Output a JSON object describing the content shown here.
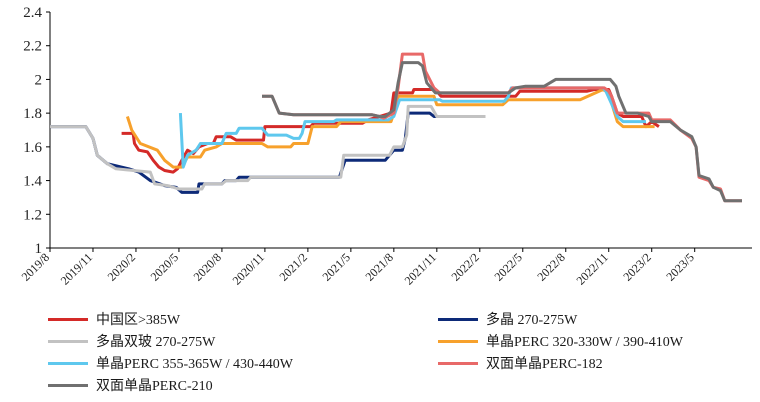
{
  "chart_data": {
    "type": "line",
    "title": "",
    "xlabel": "",
    "ylabel": "",
    "ylim": [
      1,
      2.4
    ],
    "y_ticks": [
      "1",
      "1.2",
      "1.4",
      "1.6",
      "1.8",
      "2",
      "2.2",
      "2.4"
    ],
    "x_range": [
      0,
      49
    ],
    "x_ticks": [
      {
        "label": "2019/8",
        "x": 0
      },
      {
        "label": "2019/11",
        "x": 3
      },
      {
        "label": "2020/2",
        "x": 6
      },
      {
        "label": "2020/5",
        "x": 9
      },
      {
        "label": "2020/8",
        "x": 12
      },
      {
        "label": "2020/11",
        "x": 15
      },
      {
        "label": "2021/2",
        "x": 18
      },
      {
        "label": "2021/5",
        "x": 21
      },
      {
        "label": "2021/8",
        "x": 24
      },
      {
        "label": "2021/11",
        "x": 27
      },
      {
        "label": "2022/2",
        "x": 30
      },
      {
        "label": "2022/5",
        "x": 33
      },
      {
        "label": "2022/8",
        "x": 36
      },
      {
        "label": "2022/11",
        "x": 39
      },
      {
        "label": "2023/2",
        "x": 42
      },
      {
        "label": "2023/5",
        "x": 45
      }
    ],
    "legend_position": "bottom",
    "series": [
      {
        "name": "中国区>385W",
        "color": "#d42a28",
        "points": [
          [
            5.0,
            1.68
          ],
          [
            5.8,
            1.68
          ],
          [
            5.9,
            1.62
          ],
          [
            6.2,
            1.58
          ],
          [
            6.8,
            1.57
          ],
          [
            7.2,
            1.52
          ],
          [
            7.6,
            1.48
          ],
          [
            8.0,
            1.46
          ],
          [
            8.6,
            1.45
          ],
          [
            8.9,
            1.47
          ],
          [
            9.2,
            1.52
          ],
          [
            9.6,
            1.58
          ],
          [
            10.0,
            1.56
          ],
          [
            10.4,
            1.6
          ],
          [
            11.0,
            1.62
          ],
          [
            11.4,
            1.62
          ],
          [
            11.6,
            1.66
          ],
          [
            12.6,
            1.66
          ],
          [
            13.0,
            1.64
          ],
          [
            14.9,
            1.64
          ],
          [
            15.0,
            1.72
          ],
          [
            18.2,
            1.72
          ],
          [
            18.4,
            1.74
          ],
          [
            21.8,
            1.74
          ],
          [
            22.2,
            1.76
          ],
          [
            23.0,
            1.78
          ],
          [
            23.8,
            1.8
          ],
          [
            24.0,
            1.92
          ],
          [
            25.3,
            1.92
          ],
          [
            25.4,
            1.94
          ],
          [
            26.9,
            1.94
          ],
          [
            27.3,
            1.9
          ],
          [
            32.5,
            1.9
          ],
          [
            32.8,
            1.93
          ],
          [
            37.5,
            1.93
          ],
          [
            38.0,
            1.94
          ],
          [
            39.0,
            1.94
          ],
          [
            39.2,
            1.9
          ],
          [
            39.6,
            1.8
          ],
          [
            40.0,
            1.78
          ],
          [
            41.3,
            1.78
          ],
          [
            41.6,
            1.72
          ],
          [
            42.0,
            1.75
          ],
          [
            42.5,
            1.72
          ]
        ]
      },
      {
        "name": "多晶 270-275W",
        "color": "#0d2a78",
        "points": [
          [
            0.0,
            1.72
          ],
          [
            2.5,
            1.72
          ],
          [
            3.0,
            1.65
          ],
          [
            3.3,
            1.55
          ],
          [
            4.0,
            1.5
          ],
          [
            5.5,
            1.47
          ],
          [
            6.2,
            1.45
          ],
          [
            7.0,
            1.4
          ],
          [
            8.0,
            1.37
          ],
          [
            8.8,
            1.36
          ],
          [
            9.2,
            1.33
          ],
          [
            10.3,
            1.33
          ],
          [
            10.4,
            1.38
          ],
          [
            12.0,
            1.38
          ],
          [
            12.2,
            1.4
          ],
          [
            13.0,
            1.4
          ],
          [
            13.2,
            1.42
          ],
          [
            20.2,
            1.42
          ],
          [
            20.6,
            1.52
          ],
          [
            23.4,
            1.52
          ],
          [
            24.0,
            1.58
          ],
          [
            24.6,
            1.58
          ],
          [
            24.8,
            1.65
          ],
          [
            25.0,
            1.8
          ],
          [
            26.5,
            1.8
          ],
          [
            26.8,
            1.78
          ],
          [
            27.1,
            1.78
          ]
        ]
      },
      {
        "name": "多晶双玻 270-275W",
        "color": "#c2c2c2",
        "points": [
          [
            0.0,
            1.72
          ],
          [
            2.5,
            1.72
          ],
          [
            3.0,
            1.65
          ],
          [
            3.3,
            1.55
          ],
          [
            4.0,
            1.5
          ],
          [
            4.6,
            1.47
          ],
          [
            7.0,
            1.45
          ],
          [
            7.3,
            1.38
          ],
          [
            8.2,
            1.37
          ],
          [
            9.0,
            1.35
          ],
          [
            10.6,
            1.35
          ],
          [
            10.8,
            1.38
          ],
          [
            12.0,
            1.38
          ],
          [
            12.3,
            1.4
          ],
          [
            13.8,
            1.4
          ],
          [
            14.0,
            1.42
          ],
          [
            20.3,
            1.42
          ],
          [
            20.5,
            1.55
          ],
          [
            23.7,
            1.55
          ],
          [
            24.0,
            1.6
          ],
          [
            24.6,
            1.6
          ],
          [
            24.9,
            1.67
          ],
          [
            25.0,
            1.84
          ],
          [
            26.6,
            1.84
          ],
          [
            27.0,
            1.78
          ],
          [
            30.4,
            1.78
          ]
        ]
      },
      {
        "name": "单晶PERC 320-330W / 390-410W",
        "color": "#f7a12c",
        "points": [
          [
            5.4,
            1.78
          ],
          [
            5.7,
            1.7
          ],
          [
            6.3,
            1.62
          ],
          [
            7.5,
            1.58
          ],
          [
            8.0,
            1.52
          ],
          [
            8.6,
            1.48
          ],
          [
            9.2,
            1.48
          ],
          [
            9.6,
            1.54
          ],
          [
            10.5,
            1.54
          ],
          [
            10.8,
            1.58
          ],
          [
            11.6,
            1.6
          ],
          [
            12.0,
            1.62
          ],
          [
            14.8,
            1.62
          ],
          [
            15.2,
            1.6
          ],
          [
            16.8,
            1.6
          ],
          [
            17.0,
            1.62
          ],
          [
            18.0,
            1.62
          ],
          [
            18.3,
            1.72
          ],
          [
            20.0,
            1.72
          ],
          [
            20.3,
            1.75
          ],
          [
            23.8,
            1.75
          ],
          [
            24.0,
            1.8
          ],
          [
            24.3,
            1.9
          ],
          [
            26.8,
            1.9
          ],
          [
            27.0,
            1.85
          ],
          [
            31.6,
            1.85
          ],
          [
            32.0,
            1.88
          ],
          [
            37.0,
            1.88
          ],
          [
            38.6,
            1.94
          ],
          [
            39.0,
            1.92
          ],
          [
            39.2,
            1.86
          ],
          [
            39.6,
            1.75
          ],
          [
            40.0,
            1.72
          ],
          [
            42.2,
            1.72
          ]
        ]
      },
      {
        "name": "单晶PERC 355-365W / 430-440W",
        "color": "#5ec8ee",
        "points": [
          [
            9.1,
            1.8
          ],
          [
            9.3,
            1.48
          ],
          [
            9.6,
            1.55
          ],
          [
            10.2,
            1.58
          ],
          [
            10.5,
            1.62
          ],
          [
            12.0,
            1.62
          ],
          [
            12.3,
            1.68
          ],
          [
            13.0,
            1.68
          ],
          [
            13.2,
            1.71
          ],
          [
            14.8,
            1.71
          ],
          [
            15.2,
            1.67
          ],
          [
            16.5,
            1.67
          ],
          [
            17.0,
            1.65
          ],
          [
            17.4,
            1.65
          ],
          [
            17.6,
            1.68
          ],
          [
            17.8,
            1.75
          ],
          [
            19.8,
            1.75
          ],
          [
            20.0,
            1.76
          ],
          [
            23.6,
            1.76
          ],
          [
            24.0,
            1.78
          ],
          [
            24.4,
            1.88
          ],
          [
            27.2,
            1.88
          ],
          [
            27.4,
            1.87
          ],
          [
            31.7,
            1.87
          ],
          [
            32.0,
            1.9
          ],
          [
            32.2,
            1.95
          ],
          [
            38.6,
            1.95
          ],
          [
            38.8,
            1.93
          ],
          [
            39.6,
            1.78
          ],
          [
            40.0,
            1.75
          ],
          [
            41.6,
            1.75
          ]
        ]
      },
      {
        "name": "双面单晶PERC-182",
        "color": "#e86968",
        "points": [
          [
            14.8,
            1.9
          ],
          [
            15.5,
            1.9
          ],
          [
            16.0,
            1.8
          ],
          [
            17.0,
            1.79
          ],
          [
            22.5,
            1.79
          ],
          [
            23.0,
            1.78
          ],
          [
            23.3,
            1.77
          ],
          [
            24.0,
            1.8
          ],
          [
            24.3,
            1.95
          ],
          [
            24.6,
            2.15
          ],
          [
            26.0,
            2.15
          ],
          [
            26.2,
            2.05
          ],
          [
            26.8,
            1.95
          ],
          [
            27.2,
            1.92
          ],
          [
            32.0,
            1.92
          ],
          [
            32.3,
            1.95
          ],
          [
            38.7,
            1.95
          ],
          [
            39.0,
            1.93
          ],
          [
            39.2,
            1.9
          ],
          [
            39.6,
            1.8
          ],
          [
            41.8,
            1.8
          ],
          [
            42.0,
            1.76
          ],
          [
            43.3,
            1.76
          ],
          [
            44.0,
            1.7
          ],
          [
            44.8,
            1.65
          ],
          [
            45.1,
            1.6
          ],
          [
            45.3,
            1.42
          ],
          [
            46.0,
            1.4
          ],
          [
            46.3,
            1.36
          ],
          [
            46.8,
            1.35
          ],
          [
            47.1,
            1.28
          ],
          [
            48.3,
            1.28
          ]
        ]
      },
      {
        "name": "双面单晶PERC-210",
        "color": "#707070",
        "points": [
          [
            14.8,
            1.9
          ],
          [
            15.5,
            1.9
          ],
          [
            16.0,
            1.8
          ],
          [
            17.0,
            1.79
          ],
          [
            22.5,
            1.79
          ],
          [
            23.0,
            1.78
          ],
          [
            23.4,
            1.78
          ],
          [
            24.0,
            1.82
          ],
          [
            24.3,
            1.98
          ],
          [
            24.6,
            2.1
          ],
          [
            25.7,
            2.1
          ],
          [
            26.0,
            2.08
          ],
          [
            26.3,
            1.98
          ],
          [
            26.9,
            1.92
          ],
          [
            27.3,
            1.92
          ],
          [
            32.0,
            1.92
          ],
          [
            32.5,
            1.95
          ],
          [
            33.2,
            1.96
          ],
          [
            34.5,
            1.96
          ],
          [
            35.3,
            2.0
          ],
          [
            39.1,
            2.0
          ],
          [
            39.5,
            1.96
          ],
          [
            39.7,
            1.9
          ],
          [
            40.2,
            1.8
          ],
          [
            41.0,
            1.8
          ],
          [
            41.8,
            1.78
          ],
          [
            42.0,
            1.75
          ],
          [
            43.3,
            1.75
          ],
          [
            44.0,
            1.7
          ],
          [
            44.8,
            1.66
          ],
          [
            45.1,
            1.6
          ],
          [
            45.3,
            1.43
          ],
          [
            46.0,
            1.41
          ],
          [
            46.3,
            1.36
          ],
          [
            46.8,
            1.34
          ],
          [
            47.1,
            1.28
          ],
          [
            48.3,
            1.28
          ]
        ]
      }
    ]
  }
}
